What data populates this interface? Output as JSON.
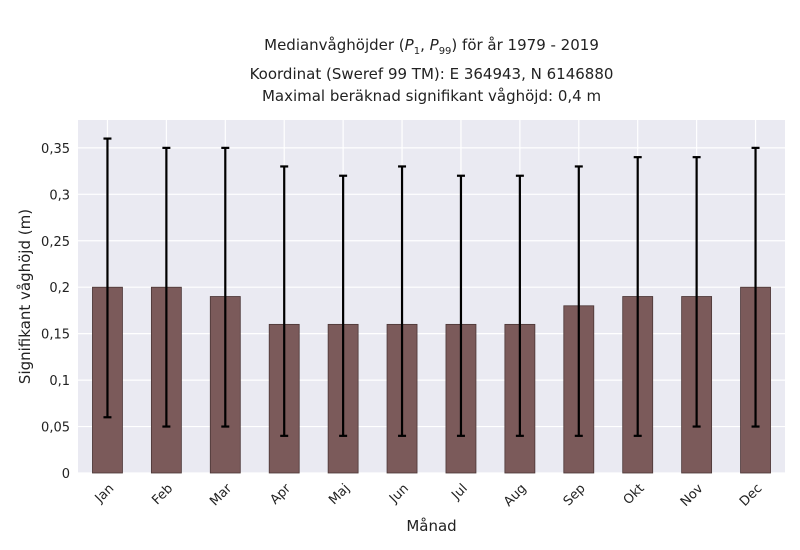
{
  "chart_data": {
    "type": "bar",
    "title_lines": [
      "Medianvåghöjder (P1, P99) för år 1979 - 2019",
      "Koordinat (Sweref 99 TM): E 364943, N 6146880",
      "Maximal beräknad signifikant våghöjd: 0,4 m"
    ],
    "xlabel": "Månad",
    "ylabel": "Signifikant våghöjd (m)",
    "categories": [
      "Jan",
      "Feb",
      "Mar",
      "Apr",
      "Maj",
      "Jun",
      "Jul",
      "Aug",
      "Sep",
      "Okt",
      "Nov",
      "Dec"
    ],
    "values": [
      0.2,
      0.2,
      0.19,
      0.16,
      0.16,
      0.16,
      0.16,
      0.16,
      0.18,
      0.19,
      0.19,
      0.2
    ],
    "p1": [
      0.06,
      0.05,
      0.05,
      0.04,
      0.04,
      0.04,
      0.04,
      0.04,
      0.04,
      0.04,
      0.05,
      0.05
    ],
    "p99": [
      0.36,
      0.35,
      0.35,
      0.33,
      0.32,
      0.33,
      0.32,
      0.32,
      0.33,
      0.34,
      0.34,
      0.35
    ],
    "ylim": [
      0,
      0.38
    ],
    "yticks": [
      0,
      0.05,
      0.1,
      0.15,
      0.2,
      0.25,
      0.3,
      0.35
    ],
    "ytick_labels": [
      "0",
      "0,05",
      "0,1",
      "0,15",
      "0,2",
      "0,25",
      "0,3",
      "0,35"
    ],
    "grid": true,
    "colors": {
      "bar": "#7b5a5a",
      "bar_edge": "#4a3535",
      "errorbar": "#000000",
      "plot_bg": "#eaeaf2",
      "grid": "#ffffff"
    }
  }
}
